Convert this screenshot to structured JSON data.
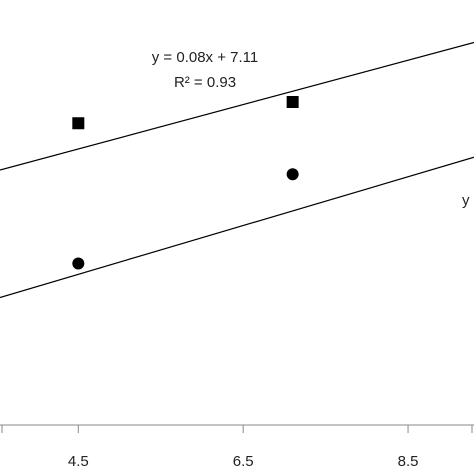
{
  "chart_data": {
    "type": "scatter",
    "title": "",
    "xlabel": "",
    "ylabel": "",
    "xlim": [
      3.55,
      9.3
    ],
    "ylim": [
      0,
      1
    ],
    "x_ticks": [
      "4.5",
      "6.5",
      "8.5"
    ],
    "x_tick_values": [
      4.5,
      6.5,
      8.5
    ],
    "grid": false,
    "marker_colors": [
      "#000000"
    ],
    "series": [
      {
        "marker": "square",
        "points": [
          [
            4.5,
            0.71
          ],
          [
            7.1,
            0.76
          ]
        ],
        "trendline": {
          "slope": 0.08,
          "intercept": 7.11,
          "x_range": [
            3.55,
            9.3
          ]
        },
        "equation": "y = 0.08x + 7.11",
        "r_squared": "R² = 0.93",
        "equation_visible": true
      },
      {
        "marker": "circle",
        "points": [
          [
            4.5,
            0.38
          ],
          [
            7.1,
            0.59
          ]
        ],
        "equation_fragment": "y",
        "equation_visible": false
      }
    ]
  }
}
